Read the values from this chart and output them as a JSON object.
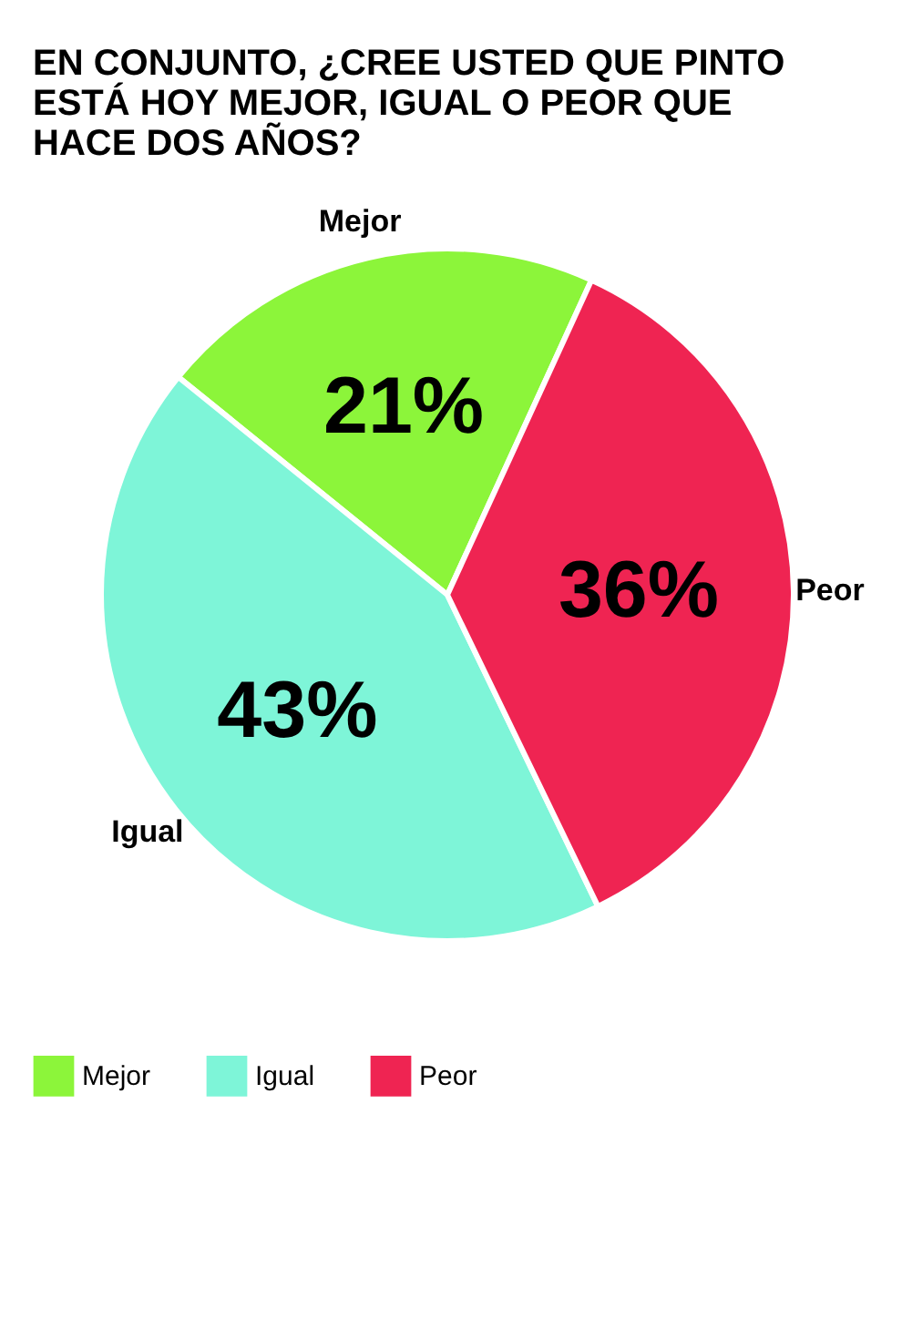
{
  "chart_data": {
    "type": "pie",
    "title": "EN CONJUNTO, ¿CREE USTED QUE PINTO ESTÁ HOY MEJOR, IGUAL O PEOR QUE HACE DOS AÑOS?",
    "categories": [
      "Mejor",
      "Igual",
      "Peor"
    ],
    "values": [
      21,
      43,
      36
    ],
    "value_labels": [
      "21%",
      "43%",
      "36%"
    ],
    "colors": [
      "#8cf53a",
      "#7ef5d8",
      "#ef2452"
    ],
    "legend": "bottom left"
  }
}
